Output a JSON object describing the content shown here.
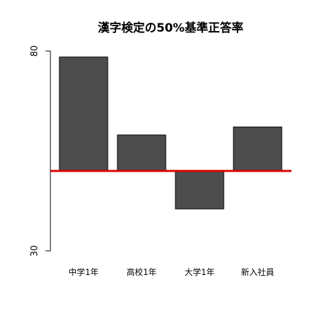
{
  "chart_data": {
    "type": "bar",
    "title": "漢字検定の50%基準正答率",
    "xlabel": "",
    "ylabel": "",
    "categories": [
      "中学1年",
      "高校1年",
      "大学1年",
      "新入社員"
    ],
    "values": [
      78.5,
      59,
      40.5,
      61
    ],
    "baseline": 50,
    "ylim": [
      30,
      80
    ],
    "yticks": [
      "80",
      "30"
    ],
    "grid": false,
    "legend": "none",
    "colors": {
      "bar": "#4d4d4d",
      "reference_line": "#dd0000",
      "axis": "#000000"
    }
  }
}
